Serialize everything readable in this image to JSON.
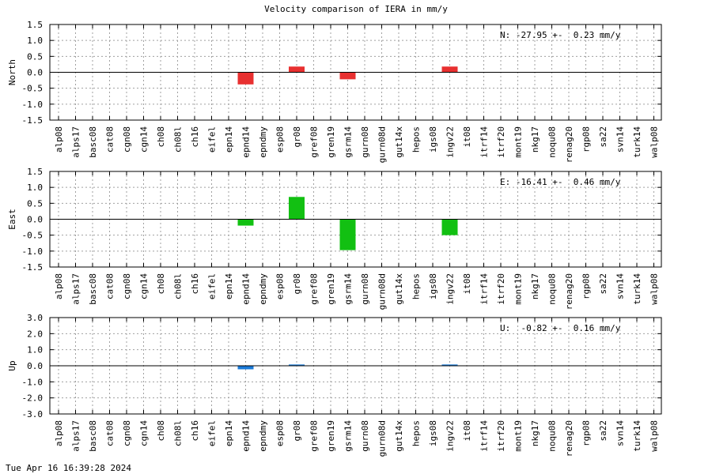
{
  "title": "Velocity comparison of IERA in mm/y",
  "footer": "Tue Apr 16 16:39:28 2024",
  "chart_data": [
    {
      "type": "bar",
      "ylabel": "North",
      "annotation": "N: -27.95 +-  0.23 mm/y",
      "ylim": [
        -1.5,
        1.5
      ],
      "yticks": [
        1.5,
        1.0,
        0.5,
        0.0,
        -0.5,
        -1.0,
        -1.5
      ],
      "ytick_labels": [
        "1.5",
        "1.0",
        "0.5",
        "0.0",
        "-0.5",
        "-1.0",
        "-1.5"
      ],
      "categories": [
        "alp08",
        "alps17",
        "basc08",
        "cat08",
        "cgn08",
        "cgn14",
        "ch08",
        "ch08l",
        "ch16",
        "eifel",
        "epn14",
        "epnd14",
        "epndmy",
        "esp08",
        "gr08",
        "gref08",
        "gren19",
        "gsrm14",
        "gurn08",
        "gurn08d",
        "gut14x",
        "hepos",
        "igs08",
        "ingv22",
        "it08",
        "itrf14",
        "itrf20",
        "mont19",
        "nkg17",
        "noqu08",
        "renag20",
        "rgp08",
        "sa22",
        "svn14",
        "turk14",
        "walp08"
      ],
      "values": [
        0,
        0,
        0,
        0,
        0,
        0,
        0,
        0,
        0,
        0,
        0,
        -0.38,
        0,
        0,
        0.18,
        0,
        0,
        -0.22,
        0,
        0,
        0,
        0,
        0,
        0.18,
        0,
        0,
        0,
        0,
        0,
        0,
        0,
        0,
        0,
        0,
        0,
        0
      ],
      "color": "#e83030",
      "grid": true
    },
    {
      "type": "bar",
      "ylabel": "East",
      "annotation": "E: -16.41 +-  0.46 mm/y",
      "ylim": [
        -1.5,
        1.5
      ],
      "yticks": [
        1.5,
        1.0,
        0.5,
        0.0,
        -0.5,
        -1.0,
        -1.5
      ],
      "ytick_labels": [
        "1.5",
        "1.0",
        "0.5",
        "0.0",
        "-0.5",
        "-1.0",
        "-1.5"
      ],
      "categories": [
        "alp08",
        "alps17",
        "basc08",
        "cat08",
        "cgn08",
        "cgn14",
        "ch08",
        "ch08l",
        "ch16",
        "eifel",
        "epn14",
        "epnd14",
        "epndmy",
        "esp08",
        "gr08",
        "gref08",
        "gren19",
        "gsrm14",
        "gurn08",
        "gurn08d",
        "gut14x",
        "hepos",
        "igs08",
        "ingv22",
        "it08",
        "itrf14",
        "itrf20",
        "mont19",
        "nkg17",
        "noqu08",
        "renag20",
        "rgp08",
        "sa22",
        "svn14",
        "turk14",
        "walp08"
      ],
      "values": [
        0,
        0,
        0,
        0,
        0,
        0,
        0,
        0,
        0,
        0,
        0,
        -0.2,
        0,
        0,
        0.7,
        0,
        0,
        -0.97,
        0,
        0,
        0,
        0,
        0,
        -0.5,
        0,
        0,
        0,
        0,
        0,
        0,
        0,
        0,
        0,
        0,
        0,
        0
      ],
      "color": "#12c012",
      "grid": true
    },
    {
      "type": "bar",
      "ylabel": "Up",
      "annotation": "U:  -0.82 +-  0.16 mm/y",
      "ylim": [
        -3.0,
        3.0
      ],
      "yticks": [
        3.0,
        2.0,
        1.0,
        0.0,
        -1.0,
        -2.0,
        -3.0
      ],
      "ytick_labels": [
        "3.0",
        "2.0",
        "1.0",
        "0.0",
        "-1.0",
        "-2.0",
        "-3.0"
      ],
      "categories": [
        "alp08",
        "alps17",
        "basc08",
        "cat08",
        "cgn08",
        "cgn14",
        "ch08",
        "ch08l",
        "ch16",
        "eifel",
        "epn14",
        "epnd14",
        "epndmy",
        "esp08",
        "gr08",
        "gref08",
        "gren19",
        "gsrm14",
        "gurn08",
        "gurn08d",
        "gut14x",
        "hepos",
        "igs08",
        "ingv22",
        "it08",
        "itrf14",
        "itrf20",
        "mont19",
        "nkg17",
        "noqu08",
        "renag20",
        "rgp08",
        "sa22",
        "svn14",
        "turk14",
        "walp08"
      ],
      "values": [
        0,
        0,
        0,
        0,
        0,
        0,
        0,
        0,
        0,
        0,
        0,
        -0.22,
        0,
        0,
        0.08,
        0,
        0,
        0,
        0,
        0,
        0,
        0,
        0,
        0.08,
        0,
        0,
        0,
        0,
        0,
        0,
        0,
        0,
        0,
        0,
        0,
        0
      ],
      "color": "#1a7ad8",
      "grid": true
    }
  ]
}
